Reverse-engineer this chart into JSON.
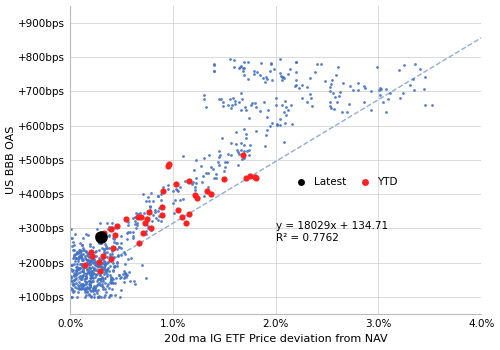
{
  "xlabel": "20d ma IG ETF Price deviation from NAV",
  "ylabel": "US BBB OAS",
  "xlim": [
    0.0,
    0.04
  ],
  "ylim": [
    50,
    950
  ],
  "xticks": [
    0.0,
    0.01,
    0.02,
    0.03,
    0.04
  ],
  "yticks": [
    100,
    200,
    300,
    400,
    500,
    600,
    700,
    800,
    900
  ],
  "ytick_labels": [
    "+100bps",
    "+200bps",
    "+300bps",
    "+400bps",
    "+500bps",
    "+600bps",
    "+700bps",
    "+800bps",
    "+900bps"
  ],
  "slope": 18029,
  "intercept": 134.71,
  "equation_text": "y = 18029x + 134.71",
  "r2_text": "R² = 0.7762",
  "blue_color": "#4472C4",
  "red_color": "#FF2020",
  "black_color": "#000000",
  "trendline_color": "#7090C8",
  "background_color": "#FFFFFF",
  "grid_color": "#CCCCCC",
  "legend_latest": "Latest",
  "legend_ytd": "YTD",
  "fig_width": 5.0,
  "fig_height": 3.5,
  "dpi": 100,
  "seed": 7
}
